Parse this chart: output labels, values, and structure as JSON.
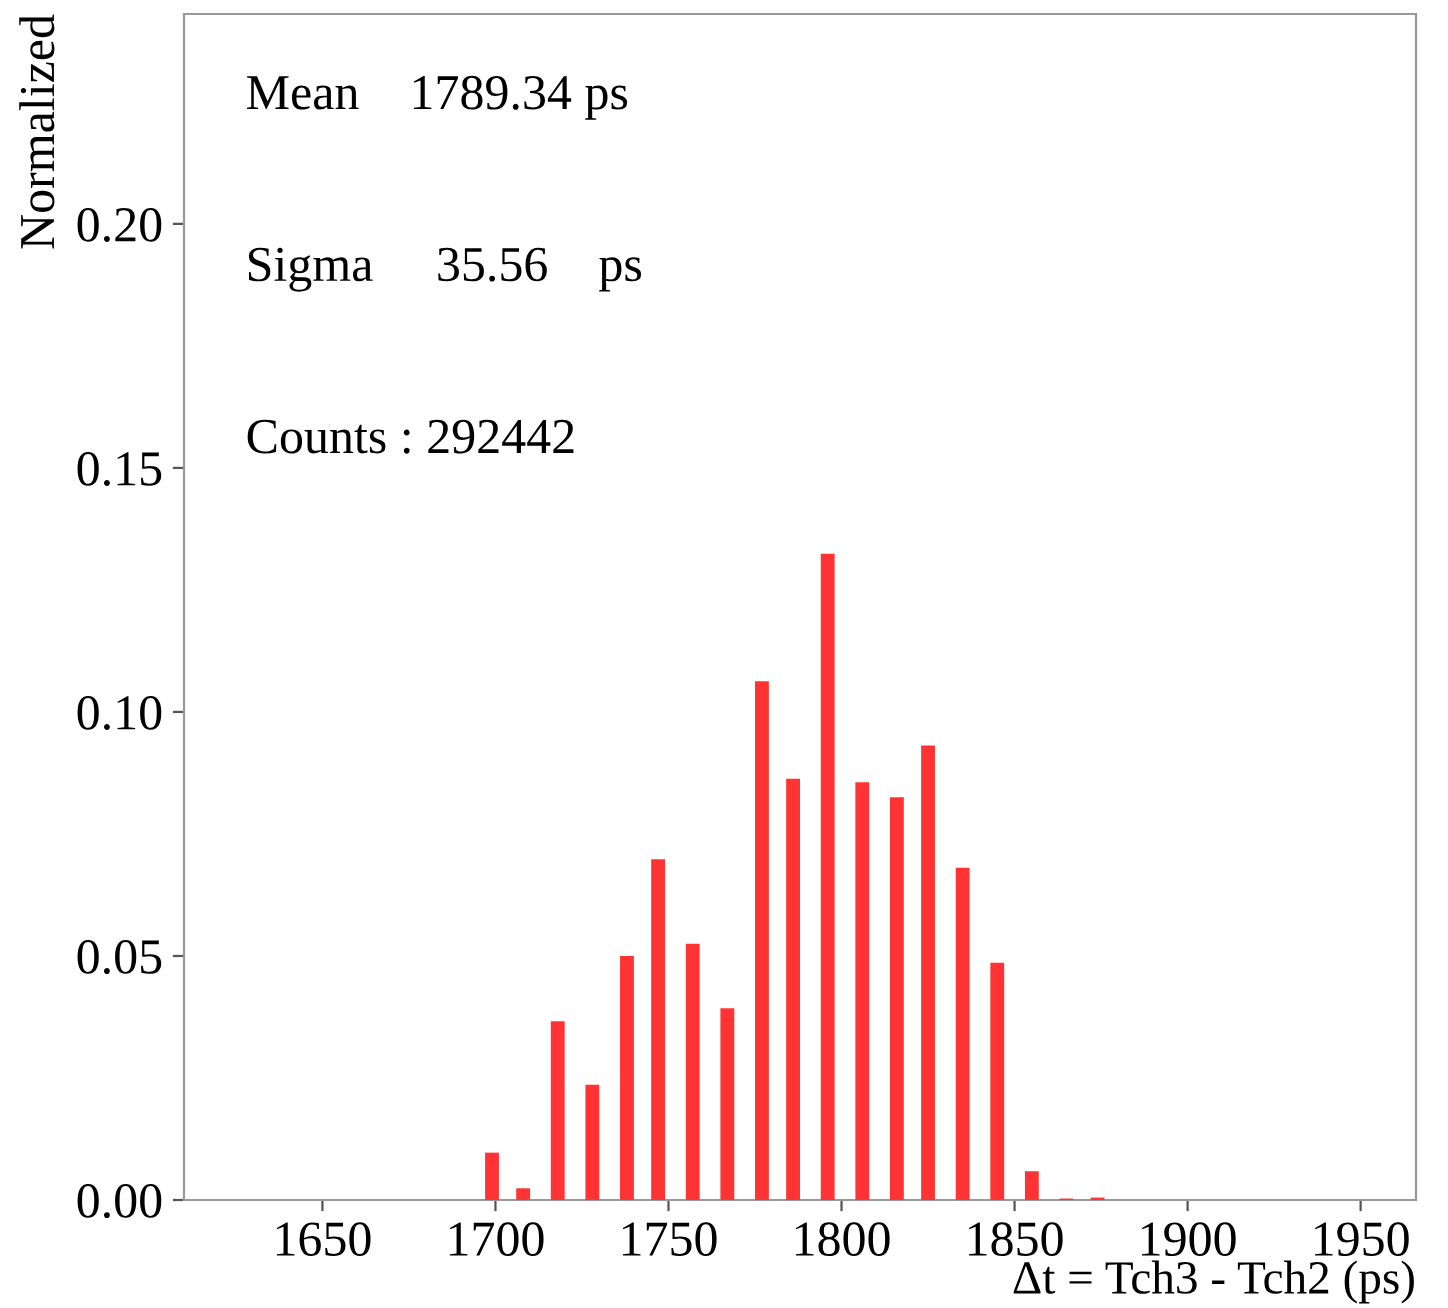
{
  "chart_data": {
    "type": "bar",
    "xlabel": "Δt = Tch3 - Tch2 (ps)",
    "ylabel": "Normalized",
    "annotations": [
      "Mean    1789.34 ps",
      "Sigma     35.56    ps",
      "Counts : 292442"
    ],
    "x": [
      1699,
      1708,
      1718,
      1728,
      1738,
      1747,
      1757,
      1767,
      1777,
      1786,
      1796,
      1806,
      1816,
      1825,
      1835,
      1845,
      1855,
      1865,
      1874
    ],
    "values": [
      0.0097,
      0.0024,
      0.0366,
      0.0236,
      0.05,
      0.0698,
      0.0525,
      0.0393,
      0.1063,
      0.0863,
      0.1324,
      0.0856,
      0.0825,
      0.0931,
      0.0681,
      0.0486,
      0.0059,
      0.0003,
      0.0005
    ],
    "color": "#ff3333",
    "xlim": [
      1610,
      1966
    ],
    "xticks": [
      1650,
      1700,
      1750,
      1800,
      1850,
      1900,
      1950
    ],
    "ylim": [
      0,
      0.243
    ],
    "yticks": [
      {
        "value": 0,
        "label": "0.00"
      },
      {
        "value": 0.05,
        "label": "0.05"
      },
      {
        "value": 0.1,
        "label": "0.10"
      },
      {
        "value": 0.15,
        "label": "0.15"
      },
      {
        "value": 0.2,
        "label": "0.20"
      }
    ],
    "grid": false,
    "legend": false
  }
}
